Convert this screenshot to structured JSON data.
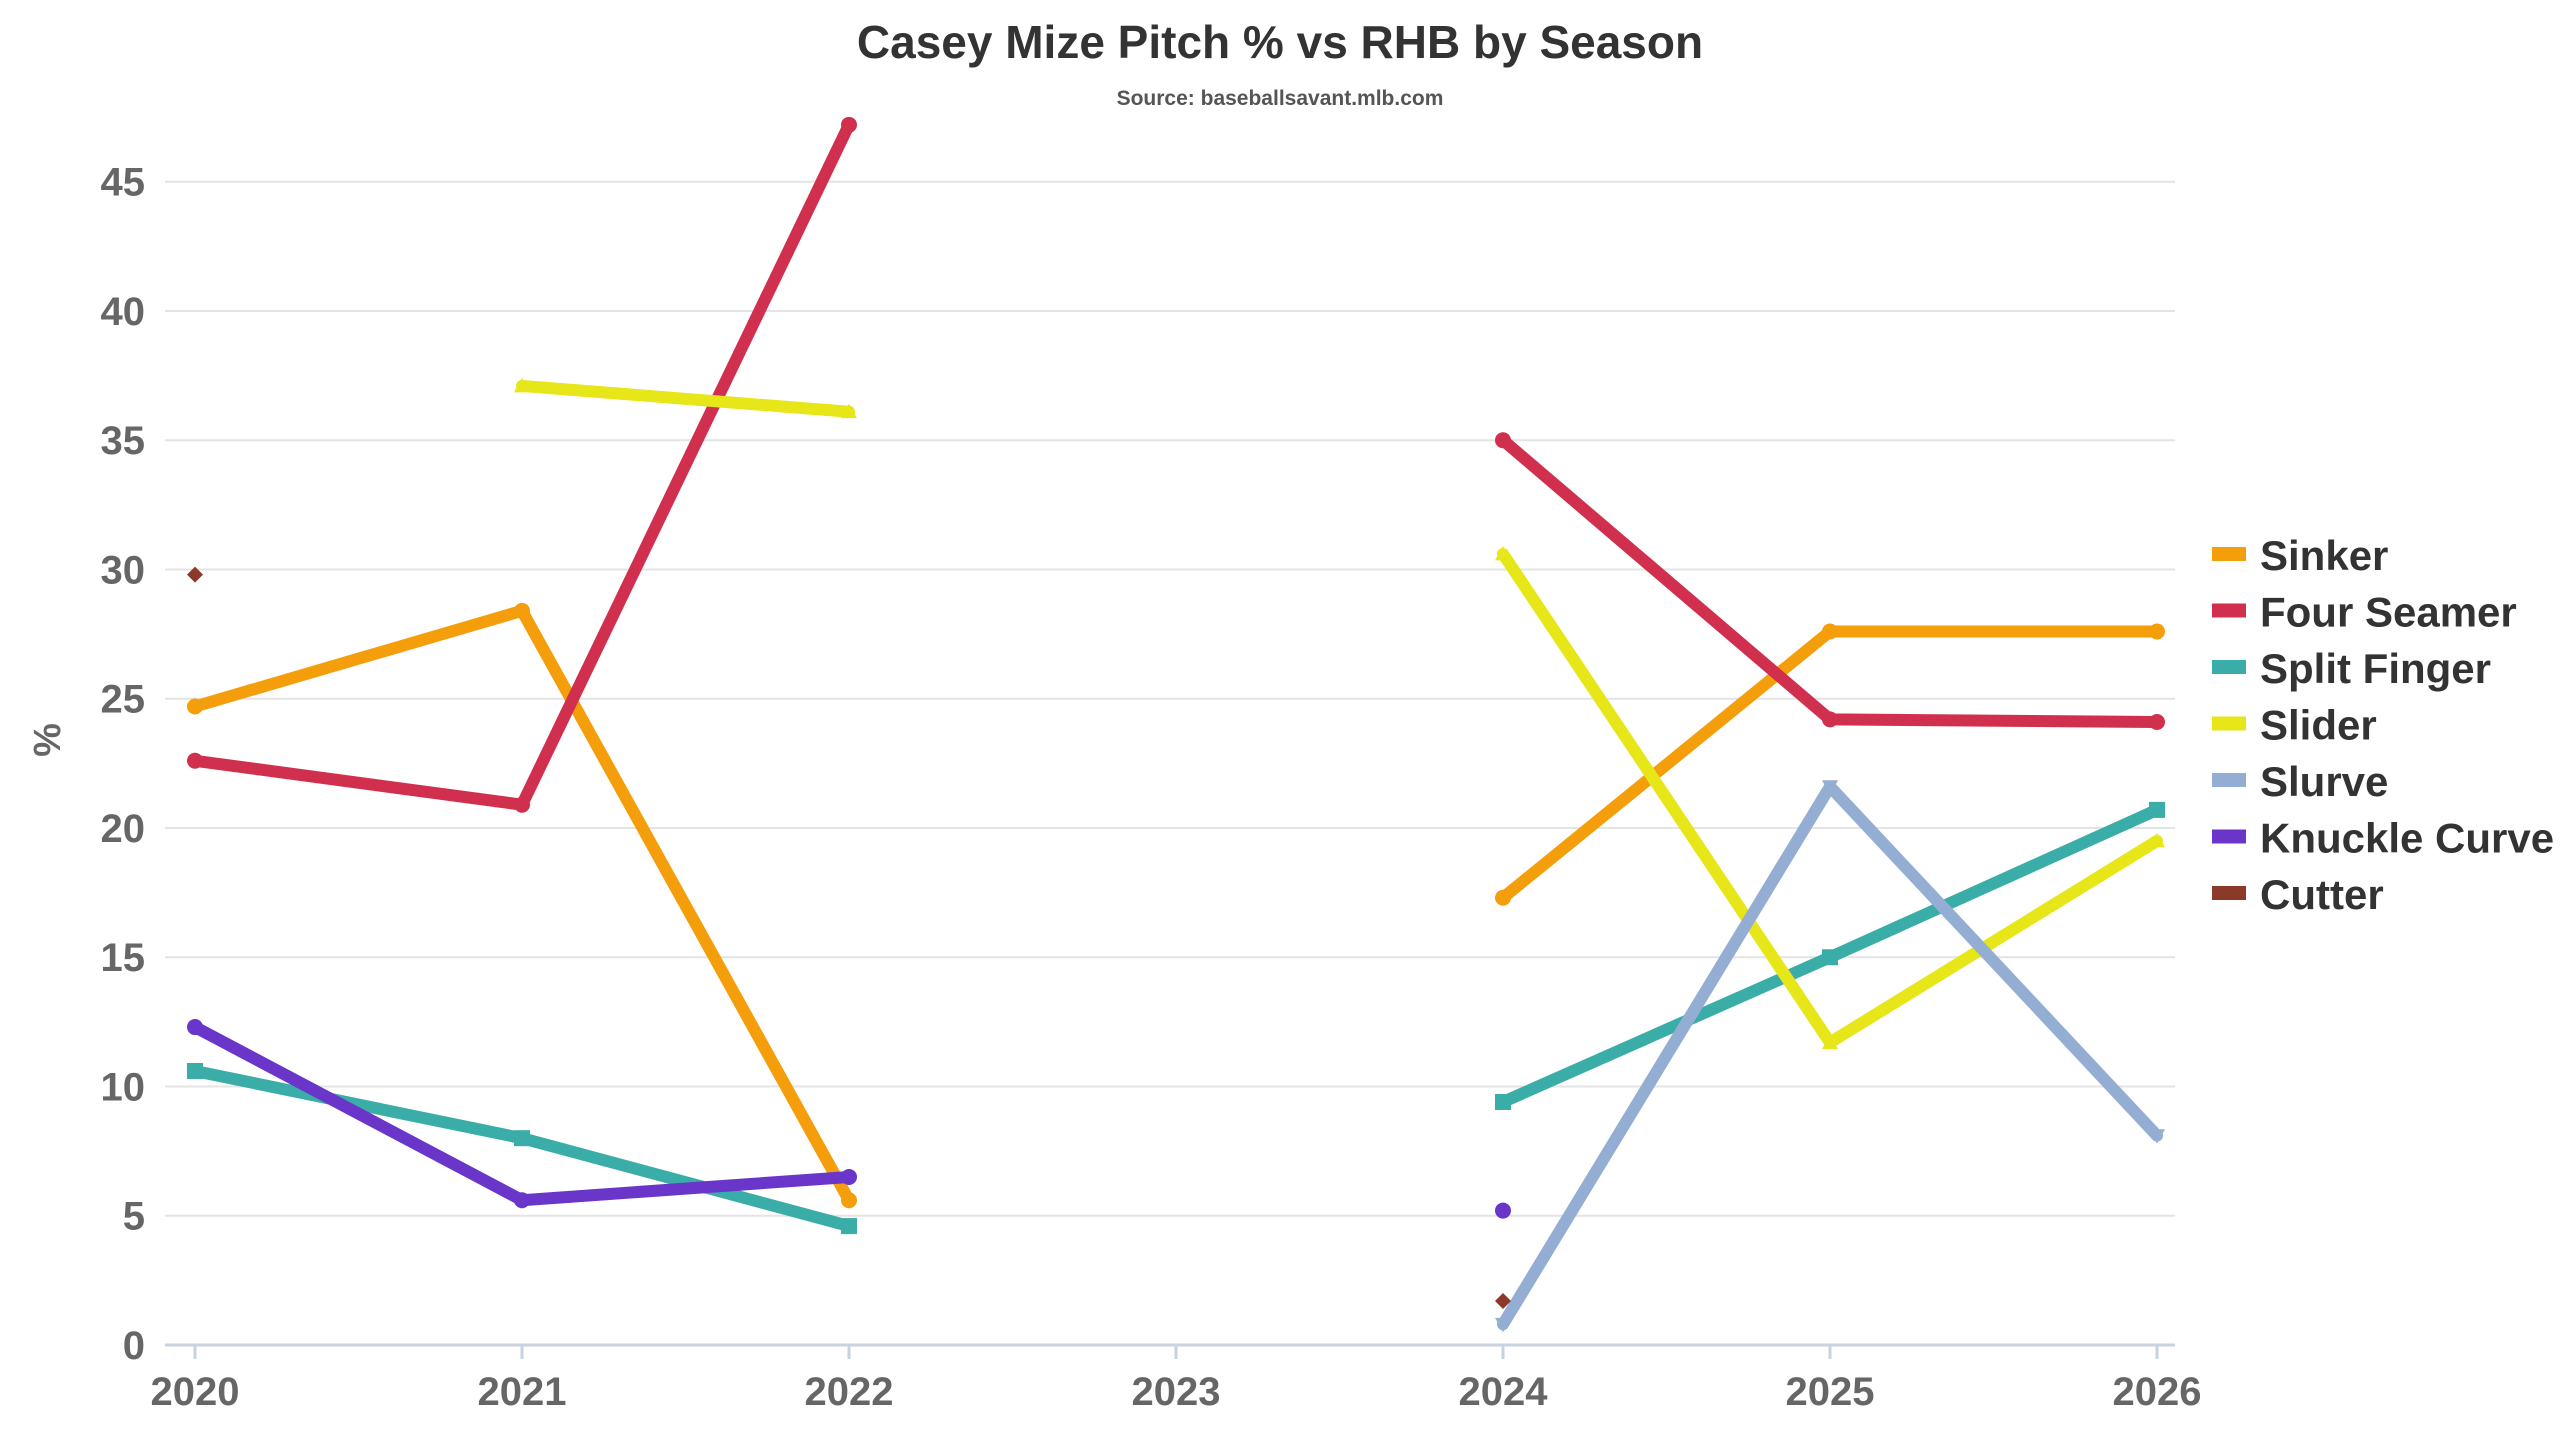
{
  "chart_data": {
    "type": "line",
    "title": "Casey Mize Pitch % vs RHB by Season",
    "subtitle": "Source: baseballsavant.mlb.com",
    "xlabel": "",
    "ylabel": "%",
    "categories": [
      "2020",
      "2021",
      "2022",
      "2023",
      "2024",
      "2025",
      "2026"
    ],
    "yticks": [
      "0",
      "5",
      "10",
      "15",
      "20",
      "25",
      "30",
      "35",
      "40",
      "45"
    ],
    "ylim": [
      0,
      47
    ],
    "grid": true,
    "legend_position": "right",
    "series": [
      {
        "name": "Sinker",
        "color": "#f59e0b",
        "marker": "circle",
        "values": [
          24.7,
          28.4,
          5.6,
          null,
          17.3,
          27.6,
          27.6
        ]
      },
      {
        "name": "Four Seamer",
        "color": "#d12f4e",
        "marker": "circle",
        "values": [
          22.6,
          20.9,
          47.2,
          null,
          35.0,
          24.2,
          24.1
        ]
      },
      {
        "name": "Split Finger",
        "color": "#3aada8",
        "marker": "square",
        "values": [
          10.6,
          8.0,
          4.6,
          null,
          9.4,
          15.0,
          20.7
        ]
      },
      {
        "name": "Slider",
        "color": "#e6e619",
        "marker": "triangle",
        "values": [
          null,
          37.1,
          36.1,
          null,
          30.6,
          11.7,
          19.5
        ]
      },
      {
        "name": "Slurve",
        "color": "#94aed3",
        "marker": "triangle-down",
        "values": [
          null,
          null,
          null,
          null,
          0.8,
          21.6,
          8.1
        ]
      },
      {
        "name": "Knuckle Curve",
        "color": "#6a35c9",
        "marker": "circle",
        "values": [
          12.3,
          5.6,
          6.5,
          null,
          5.2,
          null,
          null
        ]
      },
      {
        "name": "Cutter",
        "color": "#8b3a2a",
        "marker": "diamond",
        "values": [
          29.8,
          null,
          null,
          null,
          1.7,
          null,
          null
        ]
      }
    ]
  }
}
